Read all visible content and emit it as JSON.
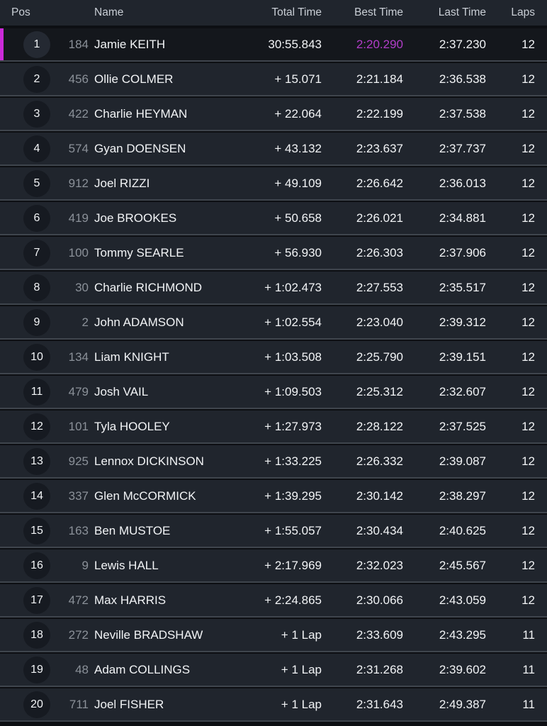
{
  "header": {
    "pos": "Pos",
    "name": "Name",
    "total": "Total Time",
    "best": "Best Time",
    "last": "Last Time",
    "laps": "Laps"
  },
  "colors": {
    "leader_stripe": "#cb2ad8",
    "fastest_lap_text": "#b23dc9",
    "row_background": "#20252d",
    "leader_row_background": "#14171c",
    "header_text": "#c9ced5",
    "rider_number_text": "#8b9199",
    "primary_text": "#f2f4f6"
  },
  "rows": [
    {
      "pos": "1",
      "num": "184",
      "name": "Jamie KEITH",
      "total": "30:55.843",
      "best": "2:20.290",
      "last": "2:37.230",
      "laps": "12",
      "leader": true,
      "fastest_lap": true
    },
    {
      "pos": "2",
      "num": "456",
      "name": "Ollie COLMER",
      "total": "+ 15.071",
      "best": "2:21.184",
      "last": "2:36.538",
      "laps": "12",
      "leader": false,
      "fastest_lap": false
    },
    {
      "pos": "3",
      "num": "422",
      "name": "Charlie HEYMAN",
      "total": "+ 22.064",
      "best": "2:22.199",
      "last": "2:37.538",
      "laps": "12",
      "leader": false,
      "fastest_lap": false
    },
    {
      "pos": "4",
      "num": "574",
      "name": "Gyan DOENSEN",
      "total": "+ 43.132",
      "best": "2:23.637",
      "last": "2:37.737",
      "laps": "12",
      "leader": false,
      "fastest_lap": false
    },
    {
      "pos": "5",
      "num": "912",
      "name": "Joel RIZZI",
      "total": "+ 49.109",
      "best": "2:26.642",
      "last": "2:36.013",
      "laps": "12",
      "leader": false,
      "fastest_lap": false
    },
    {
      "pos": "6",
      "num": "419",
      "name": "Joe BROOKES",
      "total": "+ 50.658",
      "best": "2:26.021",
      "last": "2:34.881",
      "laps": "12",
      "leader": false,
      "fastest_lap": false
    },
    {
      "pos": "7",
      "num": "100",
      "name": "Tommy SEARLE",
      "total": "+ 56.930",
      "best": "2:26.303",
      "last": "2:37.906",
      "laps": "12",
      "leader": false,
      "fastest_lap": false
    },
    {
      "pos": "8",
      "num": "30",
      "name": "Charlie RICHMOND",
      "total": "+ 1:02.473",
      "best": "2:27.553",
      "last": "2:35.517",
      "laps": "12",
      "leader": false,
      "fastest_lap": false
    },
    {
      "pos": "9",
      "num": "2",
      "name": "John ADAMSON",
      "total": "+ 1:02.554",
      "best": "2:23.040",
      "last": "2:39.312",
      "laps": "12",
      "leader": false,
      "fastest_lap": false
    },
    {
      "pos": "10",
      "num": "134",
      "name": "Liam KNIGHT",
      "total": "+ 1:03.508",
      "best": "2:25.790",
      "last": "2:39.151",
      "laps": "12",
      "leader": false,
      "fastest_lap": false
    },
    {
      "pos": "11",
      "num": "479",
      "name": "Josh VAIL",
      "total": "+ 1:09.503",
      "best": "2:25.312",
      "last": "2:32.607",
      "laps": "12",
      "leader": false,
      "fastest_lap": false
    },
    {
      "pos": "12",
      "num": "101",
      "name": "Tyla HOOLEY",
      "total": "+ 1:27.973",
      "best": "2:28.122",
      "last": "2:37.525",
      "laps": "12",
      "leader": false,
      "fastest_lap": false
    },
    {
      "pos": "13",
      "num": "925",
      "name": "Lennox DICKINSON",
      "total": "+ 1:33.225",
      "best": "2:26.332",
      "last": "2:39.087",
      "laps": "12",
      "leader": false,
      "fastest_lap": false
    },
    {
      "pos": "14",
      "num": "337",
      "name": "Glen McCORMICK",
      "total": "+ 1:39.295",
      "best": "2:30.142",
      "last": "2:38.297",
      "laps": "12",
      "leader": false,
      "fastest_lap": false
    },
    {
      "pos": "15",
      "num": "163",
      "name": "Ben MUSTOE",
      "total": "+ 1:55.057",
      "best": "2:30.434",
      "last": "2:40.625",
      "laps": "12",
      "leader": false,
      "fastest_lap": false
    },
    {
      "pos": "16",
      "num": "9",
      "name": "Lewis HALL",
      "total": "+ 2:17.969",
      "best": "2:32.023",
      "last": "2:45.567",
      "laps": "12",
      "leader": false,
      "fastest_lap": false
    },
    {
      "pos": "17",
      "num": "472",
      "name": "Max HARRIS",
      "total": "+ 2:24.865",
      "best": "2:30.066",
      "last": "2:43.059",
      "laps": "12",
      "leader": false,
      "fastest_lap": false
    },
    {
      "pos": "18",
      "num": "272",
      "name": "Neville BRADSHAW",
      "total": "+ 1 Lap",
      "best": "2:33.609",
      "last": "2:43.295",
      "laps": "11",
      "leader": false,
      "fastest_lap": false
    },
    {
      "pos": "19",
      "num": "48",
      "name": "Adam COLLINGS",
      "total": "+ 1 Lap",
      "best": "2:31.268",
      "last": "2:39.602",
      "laps": "11",
      "leader": false,
      "fastest_lap": false
    },
    {
      "pos": "20",
      "num": "711",
      "name": "Joel FISHER",
      "total": "+ 1 Lap",
      "best": "2:31.643",
      "last": "2:49.387",
      "laps": "11",
      "leader": false,
      "fastest_lap": false
    }
  ]
}
